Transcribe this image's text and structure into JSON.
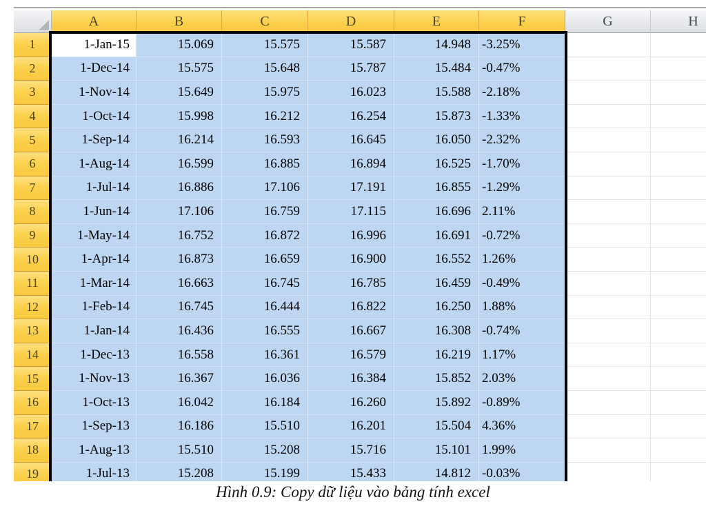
{
  "spreadsheet": {
    "select_all_corner": "",
    "active_cell": "A1",
    "columns": [
      {
        "label": "A",
        "selected": true
      },
      {
        "label": "B",
        "selected": true
      },
      {
        "label": "C",
        "selected": true
      },
      {
        "label": "D",
        "selected": true
      },
      {
        "label": "E",
        "selected": true
      },
      {
        "label": "F",
        "selected": true
      },
      {
        "label": "G",
        "selected": false
      },
      {
        "label": "H",
        "selected": false
      }
    ],
    "rows": [
      {
        "num": "1",
        "cells": [
          "1-Jan-15",
          "15.069",
          "15.575",
          "15.587",
          "14.948",
          "-3.25%"
        ]
      },
      {
        "num": "2",
        "cells": [
          "1-Dec-14",
          "15.575",
          "15.648",
          "15.787",
          "15.484",
          "-0.47%"
        ]
      },
      {
        "num": "3",
        "cells": [
          "1-Nov-14",
          "15.649",
          "15.975",
          "16.023",
          "15.588",
          "-2.18%"
        ]
      },
      {
        "num": "4",
        "cells": [
          "1-Oct-14",
          "15.998",
          "16.212",
          "16.254",
          "15.873",
          "-1.33%"
        ]
      },
      {
        "num": "5",
        "cells": [
          "1-Sep-14",
          "16.214",
          "16.593",
          "16.645",
          "16.050",
          "-2.32%"
        ]
      },
      {
        "num": "6",
        "cells": [
          "1-Aug-14",
          "16.599",
          "16.885",
          "16.894",
          "16.525",
          "-1.70%"
        ]
      },
      {
        "num": "7",
        "cells": [
          "1-Jul-14",
          "16.886",
          "17.106",
          "17.191",
          "16.855",
          "-1.29%"
        ]
      },
      {
        "num": "8",
        "cells": [
          "1-Jun-14",
          "17.106",
          "16.759",
          "17.115",
          "16.696",
          "2.11%"
        ]
      },
      {
        "num": "9",
        "cells": [
          "1-May-14",
          "16.752",
          "16.872",
          "16.996",
          "16.691",
          "-0.72%"
        ]
      },
      {
        "num": "10",
        "cells": [
          "1-Apr-14",
          "16.873",
          "16.659",
          "16.900",
          "16.552",
          "1.26%"
        ]
      },
      {
        "num": "11",
        "cells": [
          "1-Mar-14",
          "16.663",
          "16.745",
          "16.785",
          "16.459",
          "-0.49%"
        ]
      },
      {
        "num": "12",
        "cells": [
          "1-Feb-14",
          "16.745",
          "16.444",
          "16.822",
          "16.250",
          "1.88%"
        ]
      },
      {
        "num": "13",
        "cells": [
          "1-Jan-14",
          "16.436",
          "16.555",
          "16.667",
          "16.308",
          "-0.74%"
        ]
      },
      {
        "num": "14",
        "cells": [
          "1-Dec-13",
          "16.558",
          "16.361",
          "16.579",
          "16.219",
          "1.17%"
        ]
      },
      {
        "num": "15",
        "cells": [
          "1-Nov-13",
          "16.367",
          "16.036",
          "16.384",
          "15.852",
          "2.03%"
        ]
      },
      {
        "num": "16",
        "cells": [
          "1-Oct-13",
          "16.042",
          "16.184",
          "16.260",
          "15.892",
          "-0.89%"
        ]
      },
      {
        "num": "17",
        "cells": [
          "1-Sep-13",
          "16.186",
          "15.510",
          "16.201",
          "15.504",
          "4.36%"
        ]
      },
      {
        "num": "18",
        "cells": [
          "1-Aug-13",
          "15.510",
          "15.208",
          "15.716",
          "15.101",
          "1.99%"
        ]
      },
      {
        "num": "19",
        "cells": [
          "1-Jul-13",
          "15.208",
          "15.199",
          "15.433",
          "14.812",
          "-0.03%"
        ]
      }
    ],
    "colors": {
      "selected_header_gold": "#fbd14e",
      "unselected_header_gray": "#e4e6ea",
      "selection_fill_blue": "#bdd7f2",
      "selection_border_black": "#000000",
      "active_cell_white": "#ffffff"
    }
  },
  "caption": {
    "text": "Hình 0.9: Copy dữ liệu vào bảng tính excel"
  }
}
